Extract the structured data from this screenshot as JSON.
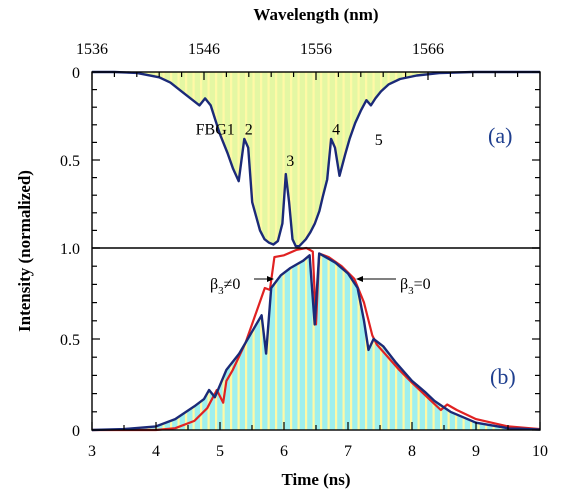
{
  "chart_data": [
    {
      "id": "a",
      "type": "area",
      "panel_label": "(a)",
      "top_axis": {
        "label": "Wavelength (nm)",
        "range": [
          1536,
          1576
        ],
        "ticks": [
          "1536",
          "1546",
          "1556",
          "1566"
        ]
      },
      "y_axis": {
        "label": "Intensity (normalized)",
        "range": [
          0,
          1.0
        ],
        "inverted": true,
        "ticks": [
          "0",
          "0.5",
          "1.0"
        ]
      },
      "fill_colors": [
        "#e4f7a3",
        "#fff9a6"
      ],
      "series": [
        {
          "color": "#1b2a78",
          "x": [
            1536,
            1538,
            1540,
            1542,
            1543,
            1544,
            1545,
            1545.6,
            1546.1,
            1546.6,
            1547,
            1547.4,
            1548.1,
            1548.6,
            1549.1,
            1549.6,
            1549.95,
            1550.3,
            1550.65,
            1551,
            1551.4,
            1551.8,
            1552.2,
            1552.6,
            1553.0,
            1553.3,
            1553.6,
            1553.9,
            1554.2,
            1554.5,
            1554.8,
            1555.1,
            1555.5,
            1555.9,
            1556.3,
            1556.6,
            1557.0,
            1557.35,
            1557.7,
            1558.1,
            1558.6,
            1559.0,
            1559.5,
            1560.0,
            1560.5,
            1560.9,
            1561.3,
            1561.8,
            1562.5,
            1563.5,
            1565,
            1567,
            1570,
            1573,
            1576
          ],
          "y": [
            0.0,
            0.0,
            0.005,
            0.03,
            0.06,
            0.11,
            0.16,
            0.19,
            0.15,
            0.19,
            0.27,
            0.35,
            0.46,
            0.55,
            0.62,
            0.38,
            0.43,
            0.74,
            0.82,
            0.9,
            0.95,
            0.97,
            0.98,
            0.96,
            0.86,
            0.58,
            0.74,
            0.95,
            0.99,
            0.99,
            0.97,
            0.95,
            0.91,
            0.86,
            0.79,
            0.71,
            0.61,
            0.38,
            0.43,
            0.59,
            0.47,
            0.38,
            0.29,
            0.22,
            0.16,
            0.19,
            0.15,
            0.11,
            0.07,
            0.04,
            0.02,
            0.006,
            0.0,
            0.0,
            0.0
          ]
        }
      ],
      "annotations": [
        {
          "text": "FBG1",
          "x": 1547.0,
          "y": 0.32
        },
        {
          "text": "2",
          "x": 1550.0,
          "y": 0.32
        },
        {
          "text": "3",
          "x": 1553.7,
          "y": 0.5
        },
        {
          "text": "4",
          "x": 1557.8,
          "y": 0.32
        },
        {
          "text": "5",
          "x": 1561.6,
          "y": 0.38
        }
      ]
    },
    {
      "id": "b",
      "type": "area",
      "panel_label": "(b)",
      "x_axis": {
        "label": "Time (ns)",
        "range": [
          3,
          10
        ],
        "ticks": [
          "3",
          "4",
          "5",
          "6",
          "7",
          "8",
          "9",
          "10"
        ]
      },
      "y_axis": {
        "label": "Intensity (normalized)",
        "range": [
          0,
          1.0
        ],
        "ticks": [
          "0",
          "0.5",
          "1.0"
        ]
      },
      "fill_colors": [
        "#9ff0ee",
        "#fff9a6"
      ],
      "series": [
        {
          "name": "β3=0",
          "color": "#1b2a78",
          "x": [
            3.0,
            3.5,
            4.0,
            4.3,
            4.6,
            4.75,
            4.83,
            4.92,
            5.1,
            5.3,
            5.5,
            5.65,
            5.72,
            5.8,
            5.95,
            6.1,
            6.3,
            6.4,
            6.48,
            6.55,
            6.65,
            6.8,
            7.0,
            7.15,
            7.25,
            7.32,
            7.4,
            7.55,
            7.75,
            8.0,
            8.1,
            8.2,
            8.35,
            8.6,
            9.0,
            9.5,
            10.0
          ],
          "y": [
            0.0,
            0.005,
            0.02,
            0.06,
            0.13,
            0.17,
            0.22,
            0.18,
            0.33,
            0.42,
            0.54,
            0.63,
            0.42,
            0.78,
            0.85,
            0.89,
            0.93,
            0.96,
            0.58,
            0.97,
            0.95,
            0.92,
            0.86,
            0.78,
            0.6,
            0.44,
            0.5,
            0.46,
            0.37,
            0.27,
            0.24,
            0.21,
            0.16,
            0.1,
            0.04,
            0.01,
            0.002
          ]
        },
        {
          "name": "β3≠0",
          "color": "#e02222",
          "x": [
            3.0,
            4.0,
            4.3,
            4.6,
            4.8,
            4.95,
            5.05,
            5.1,
            5.2,
            5.4,
            5.6,
            5.7,
            5.78,
            5.85,
            6.0,
            6.2,
            6.35,
            6.45,
            6.5,
            6.55,
            6.7,
            6.9,
            7.1,
            7.25,
            7.38,
            7.45,
            7.6,
            7.8,
            8.0,
            8.3,
            8.45,
            8.55,
            8.7,
            9.0,
            9.5,
            10.0
          ],
          "y": [
            0.0,
            0.0,
            0.01,
            0.05,
            0.12,
            0.22,
            0.15,
            0.27,
            0.33,
            0.48,
            0.68,
            0.78,
            0.77,
            0.95,
            0.96,
            0.99,
            1.0,
            0.98,
            0.58,
            0.97,
            0.95,
            0.9,
            0.83,
            0.7,
            0.52,
            0.47,
            0.41,
            0.33,
            0.26,
            0.16,
            0.11,
            0.14,
            0.11,
            0.06,
            0.02,
            0.005
          ]
        }
      ],
      "annotations": [
        {
          "text": "β3≠0",
          "x": 5.5,
          "y": 0.88
        },
        {
          "text": "β3=0",
          "x": 7.5,
          "y": 0.88
        }
      ]
    }
  ]
}
